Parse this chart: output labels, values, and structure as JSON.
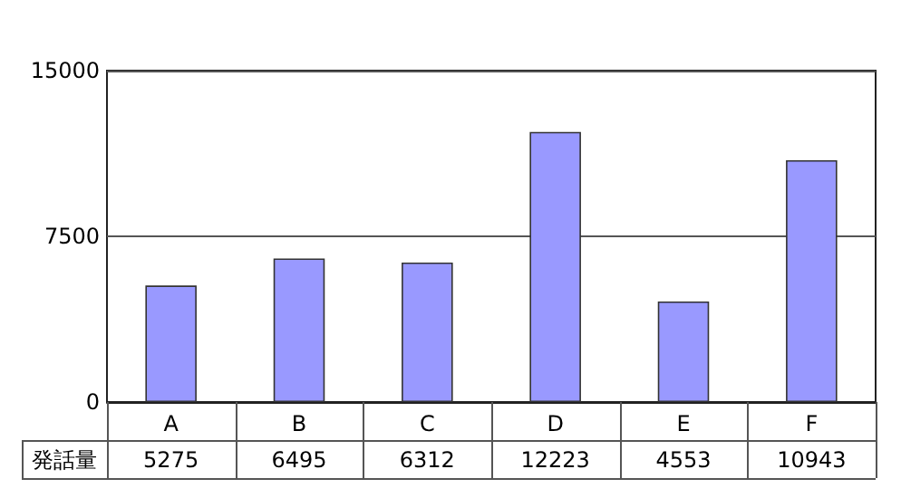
{
  "chart_data": {
    "type": "bar",
    "categories": [
      "A",
      "B",
      "C",
      "D",
      "E",
      "F"
    ],
    "series": [
      {
        "name": "発話量",
        "color": "#9999ff",
        "values": [
          5275,
          6495,
          6312,
          12223,
          4553,
          10943
        ]
      }
    ],
    "ylim": [
      0,
      15000
    ],
    "yticks": [
      0,
      7500,
      15000
    ],
    "grid": "y",
    "legend": false,
    "data_labels": true
  }
}
